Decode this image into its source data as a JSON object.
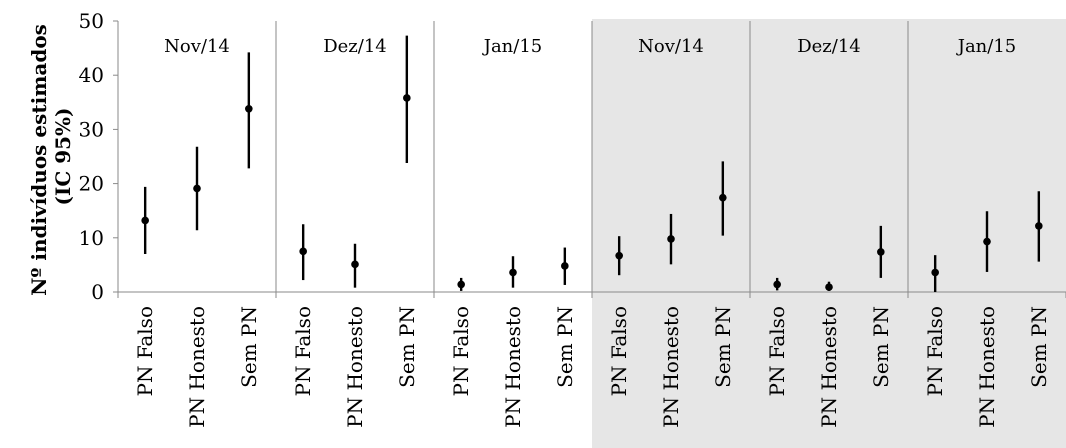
{
  "chart_data": {
    "type": "scatter",
    "ylabel": [
      "Nº indivíduos estimados",
      "(IC 95%)"
    ],
    "yticks": [
      0,
      10,
      20,
      30,
      40,
      50
    ],
    "ylim": [
      0,
      50
    ],
    "grid": false,
    "shaded_background_color": "#e6e6e6",
    "point_color": "#000000",
    "panels": [
      {
        "title": "Nov/14",
        "shaded": false,
        "points": [
          {
            "category": "PN Falso",
            "estimate": 13.2,
            "lower": 7.0,
            "upper": 19.4
          },
          {
            "category": "PN Honesto",
            "estimate": 19.1,
            "lower": 11.4,
            "upper": 26.8
          },
          {
            "category": "Sem PN",
            "estimate": 33.8,
            "lower": 22.8,
            "upper": 44.2
          }
        ]
      },
      {
        "title": "Dez/14",
        "shaded": false,
        "points": [
          {
            "category": "PN Falso",
            "estimate": 7.5,
            "lower": 2.2,
            "upper": 12.5
          },
          {
            "category": "PN Honesto",
            "estimate": 5.1,
            "lower": 0.8,
            "upper": 8.9
          },
          {
            "category": "Sem PN",
            "estimate": 35.8,
            "lower": 23.8,
            "upper": 47.3
          }
        ]
      },
      {
        "title": "Jan/15",
        "shaded": false,
        "points": [
          {
            "category": "PN Falso",
            "estimate": 1.4,
            "lower": 0.2,
            "upper": 2.6
          },
          {
            "category": "PN Honesto",
            "estimate": 3.6,
            "lower": 0.8,
            "upper": 6.6
          },
          {
            "category": "Sem PN",
            "estimate": 4.8,
            "lower": 1.3,
            "upper": 8.2
          }
        ]
      },
      {
        "title": "Nov/14",
        "shaded": true,
        "points": [
          {
            "category": "PN Falso",
            "estimate": 6.7,
            "lower": 3.1,
            "upper": 10.3
          },
          {
            "category": "PN Honesto",
            "estimate": 9.8,
            "lower": 5.1,
            "upper": 14.4
          },
          {
            "category": "Sem PN",
            "estimate": 17.4,
            "lower": 10.4,
            "upper": 24.1
          }
        ]
      },
      {
        "title": "Dez/14",
        "shaded": true,
        "points": [
          {
            "category": "PN Falso",
            "estimate": 1.4,
            "lower": 0.3,
            "upper": 2.6
          },
          {
            "category": "PN Honesto",
            "estimate": 0.9,
            "lower": 0.2,
            "upper": 1.9
          },
          {
            "category": "Sem PN",
            "estimate": 7.4,
            "lower": 2.6,
            "upper": 12.2
          }
        ]
      },
      {
        "title": "Jan/15",
        "shaded": true,
        "points": [
          {
            "category": "PN Falso",
            "estimate": 3.6,
            "lower": 0.0,
            "upper": 6.8
          },
          {
            "category": "PN Honesto",
            "estimate": 9.3,
            "lower": 3.7,
            "upper": 14.9
          },
          {
            "category": "Sem PN",
            "estimate": 12.2,
            "lower": 5.6,
            "upper": 18.6
          }
        ]
      }
    ]
  }
}
